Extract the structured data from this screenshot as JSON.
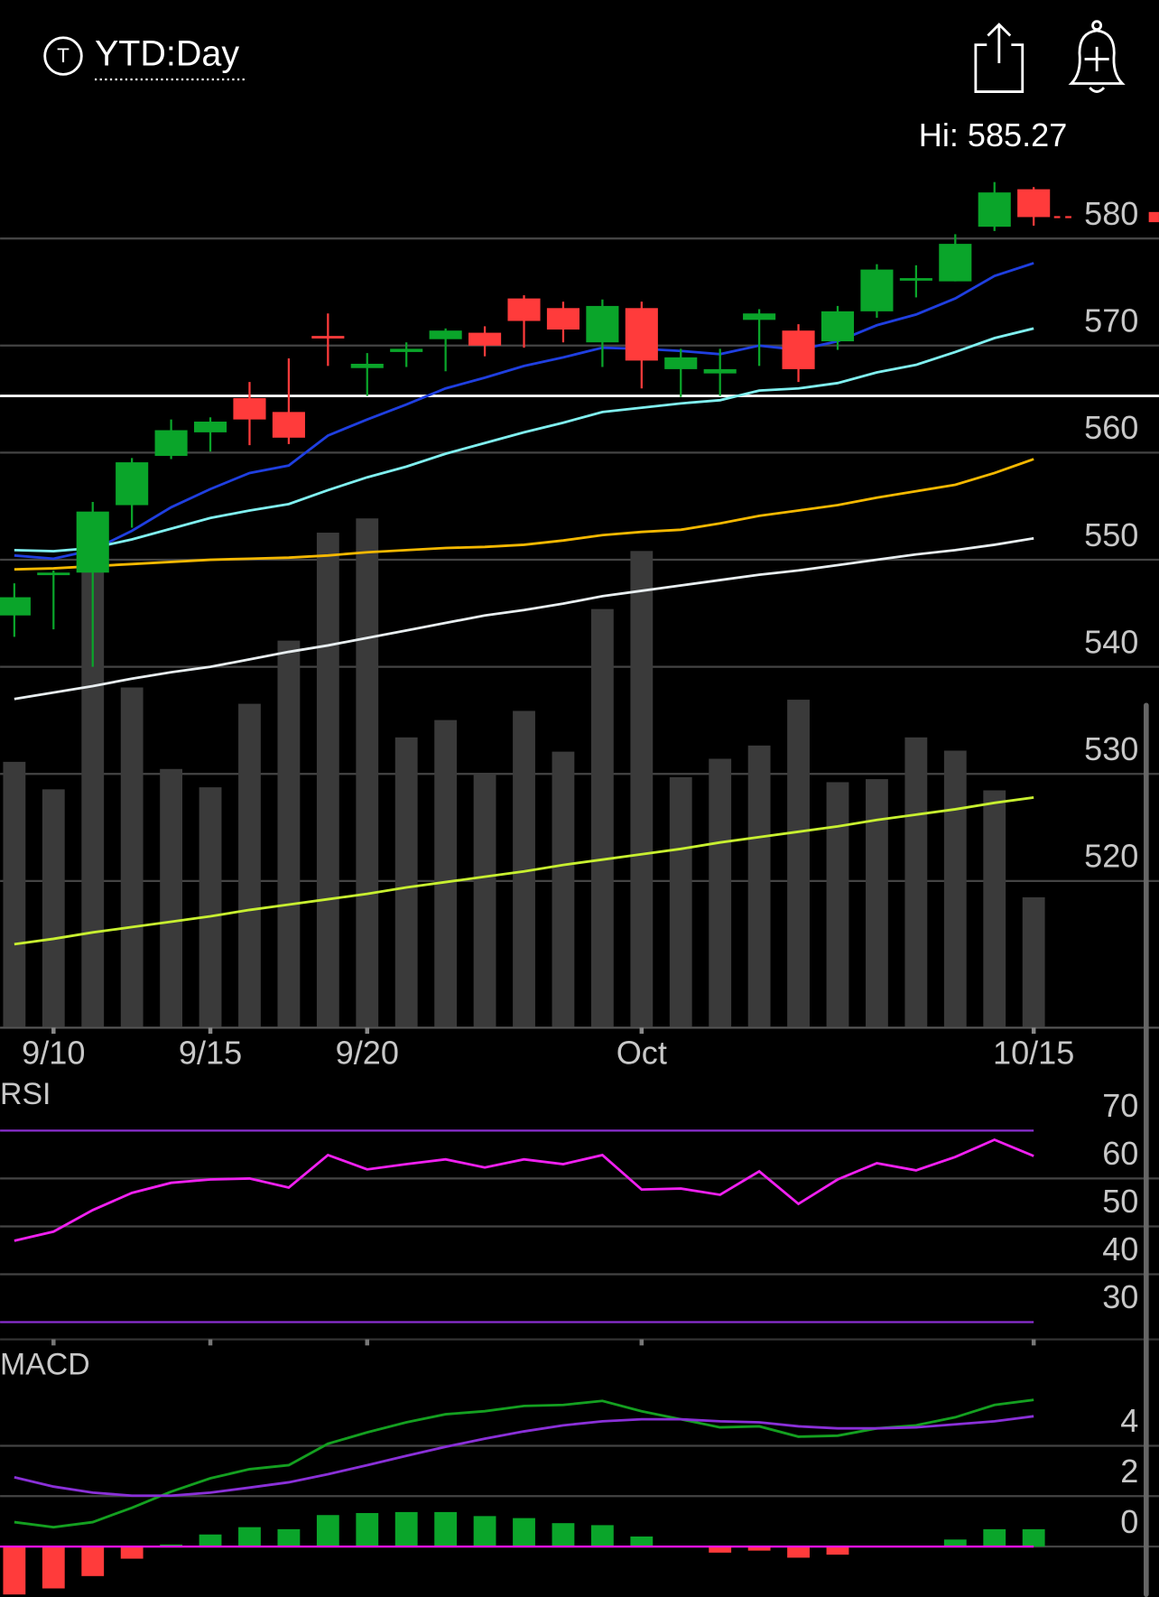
{
  "header": {
    "icon_label": "T",
    "title": "YTD:Day"
  },
  "chart_data": [
    {
      "type": "candlestick",
      "categories": [
        null,
        "9/10",
        null,
        null,
        null,
        "9/15",
        null,
        null,
        null,
        "9/20",
        null,
        null,
        null,
        null,
        null,
        null,
        "Oct",
        null,
        null,
        null,
        null,
        null,
        null,
        null,
        null,
        null,
        "10/15"
      ],
      "open": [
        544.8,
        548.6,
        548.8,
        555.1,
        559.7,
        561.9,
        565.1,
        563.8,
        570.9,
        567.9,
        569.4,
        570.6,
        571.2,
        574.4,
        573.5,
        570.3,
        573.5,
        567.8,
        567.4,
        572.4,
        571.4,
        570.4,
        573.2,
        576.1,
        576.0,
        581.1,
        584.6
      ],
      "high": [
        547.8,
        549.0,
        555.4,
        559.5,
        563.1,
        563.3,
        566.6,
        568.8,
        573.0,
        569.3,
        570.3,
        571.6,
        571.8,
        574.7,
        574.1,
        574.3,
        574.1,
        569.7,
        569.7,
        573.4,
        572.0,
        573.7,
        577.6,
        577.5,
        580.4,
        585.27,
        584.8
      ],
      "low": [
        542.8,
        543.5,
        540.0,
        553.0,
        559.4,
        560.1,
        560.7,
        560.8,
        568.1,
        565.3,
        568.0,
        567.6,
        569.0,
        569.8,
        570.3,
        568.0,
        566.0,
        565.2,
        565.3,
        568.1,
        566.6,
        569.6,
        572.6,
        574.5,
        576.0,
        580.7,
        581.2
      ],
      "close": [
        546.5,
        548.8,
        554.5,
        559.1,
        562.1,
        562.9,
        563.1,
        561.4,
        570.8,
        568.3,
        569.7,
        571.4,
        570.0,
        572.3,
        571.5,
        573.7,
        568.6,
        568.9,
        567.8,
        573.0,
        567.8,
        573.2,
        577.1,
        576.3,
        579.5,
        584.3,
        582.0
      ],
      "up_color": "#0aa52a",
      "down_color": "#ff3b3b",
      "ylim": [
        506.4,
        592.0
      ],
      "yticks": [
        520,
        530,
        540,
        550,
        560,
        570,
        580
      ],
      "grid": true,
      "annotation": "Hi: 585.27",
      "hline": 565.3,
      "series": [
        {
          "color": "#1f3fe0",
          "values": [
            550.4,
            550.1,
            550.9,
            552.7,
            554.9,
            556.6,
            558.1,
            558.8,
            561.6,
            563.1,
            564.5,
            566.0,
            567.0,
            568.1,
            568.9,
            569.8,
            569.7,
            569.5,
            569.2,
            570.0,
            569.6,
            570.4,
            571.9,
            572.9,
            574.4,
            576.5,
            577.7
          ]
        },
        {
          "color": "#80f0f0",
          "values": [
            550.9,
            550.8,
            551.1,
            551.9,
            552.9,
            553.9,
            554.6,
            555.2,
            556.5,
            557.7,
            558.7,
            559.9,
            560.9,
            561.9,
            562.8,
            563.8,
            564.2,
            564.6,
            564.9,
            565.8,
            566.0,
            566.5,
            567.5,
            568.2,
            569.4,
            570.7,
            571.6
          ]
        },
        {
          "color": "#f5b800",
          "values": [
            549.1,
            549.2,
            549.4,
            549.6,
            549.8,
            550.0,
            550.1,
            550.2,
            550.4,
            550.7,
            550.9,
            551.1,
            551.2,
            551.4,
            551.8,
            552.3,
            552.6,
            552.8,
            553.4,
            554.1,
            554.6,
            555.1,
            555.8,
            556.4,
            557.0,
            558.1,
            559.4
          ]
        },
        {
          "color": "#e8eef0",
          "values": [
            537.0,
            537.6,
            538.2,
            538.9,
            539.5,
            540.0,
            540.7,
            541.4,
            542.0,
            542.7,
            543.4,
            544.1,
            544.8,
            545.3,
            545.9,
            546.6,
            547.1,
            547.6,
            548.1,
            548.6,
            549.0,
            549.5,
            550.0,
            550.5,
            550.9,
            551.4,
            552.0
          ]
        },
        {
          "color": "#c8f030",
          "values": [
            514.1,
            514.6,
            515.2,
            515.7,
            516.2,
            516.7,
            517.3,
            517.8,
            518.3,
            518.8,
            519.4,
            519.9,
            520.4,
            520.9,
            521.5,
            522.0,
            522.5,
            523.0,
            523.6,
            524.1,
            524.6,
            525.1,
            525.7,
            526.2,
            526.7,
            527.3,
            527.8
          ]
        }
      ],
      "volume": {
        "color": "#3a3a3a",
        "ylim": [
          0,
          100
        ],
        "values": [
          52,
          46.6,
          89.6,
          66.6,
          50.6,
          47,
          63.4,
          75.8,
          97,
          99.8,
          56.8,
          60.2,
          49.6,
          62,
          54,
          82,
          93.4,
          49,
          52.6,
          55.2,
          64.2,
          48,
          48.6,
          56.8,
          54.2,
          46.4,
          25.4
        ]
      }
    },
    {
      "type": "line",
      "title": "RSI",
      "ylim": [
        26.4,
        79.6
      ],
      "yticks": [
        30,
        40,
        50,
        60,
        70
      ],
      "grid": true,
      "band_color": "#8a2fd0",
      "series": [
        {
          "color": "#f020f0",
          "values": [
            47.0,
            48.9,
            53.4,
            57.0,
            59.1,
            59.8,
            60.0,
            58.1,
            64.9,
            61.9,
            63.0,
            64.0,
            62.3,
            64.0,
            63.0,
            64.9,
            57.7,
            57.9,
            56.6,
            61.5,
            54.7,
            59.8,
            63.2,
            61.7,
            64.5,
            68.1,
            64.7
          ]
        }
      ]
    },
    {
      "type": "macd",
      "title": "MACD",
      "ylim": [
        -2.0,
        7.6
      ],
      "yticks": [
        0,
        2,
        4
      ],
      "grid": true,
      "zero_line_color": "#ff10ff",
      "series": [
        {
          "color": "#14a020",
          "values": [
            0.97,
            0.77,
            0.97,
            1.54,
            2.18,
            2.71,
            3.07,
            3.23,
            4.08,
            4.53,
            4.93,
            5.25,
            5.37,
            5.58,
            5.62,
            5.78,
            5.37,
            5.05,
            4.73,
            4.77,
            4.36,
            4.4,
            4.69,
            4.81,
            5.13,
            5.62,
            5.82
          ]
        },
        {
          "color": "#8a30d8",
          "values": [
            2.75,
            2.38,
            2.14,
            2.02,
            2.02,
            2.14,
            2.34,
            2.55,
            2.87,
            3.23,
            3.6,
            3.96,
            4.28,
            4.57,
            4.81,
            4.97,
            5.05,
            5.05,
            4.97,
            4.93,
            4.77,
            4.69,
            4.69,
            4.73,
            4.85,
            4.97,
            5.17
          ]
        }
      ],
      "histogram": {
        "up_color": "#0aa52a",
        "down_color": "#ff3b3b",
        "values": [
          -1.9,
          -1.66,
          -1.17,
          -0.48,
          0.08,
          0.48,
          0.77,
          0.69,
          1.25,
          1.33,
          1.37,
          1.37,
          1.21,
          1.13,
          0.93,
          0.85,
          0.4,
          0.04,
          -0.24,
          -0.16,
          -0.44,
          -0.32,
          0.02,
          0.02,
          0.28,
          0.69,
          0.69
        ]
      }
    }
  ]
}
